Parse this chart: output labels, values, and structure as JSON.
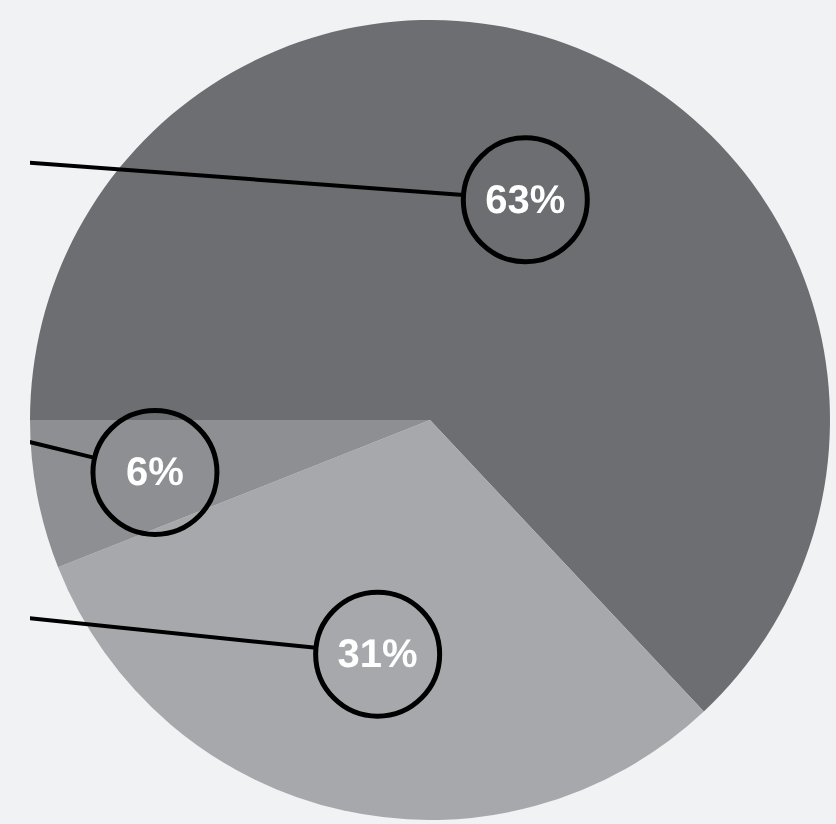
{
  "chart_data": {
    "type": "pie",
    "categories": [
      null,
      null,
      null
    ],
    "values": [
      63,
      31,
      6
    ],
    "colors": [
      "#6d6e71",
      "#a7a8ab",
      "#8e8f92"
    ],
    "value_labels": [
      "63%",
      "31%",
      "6%"
    ]
  }
}
